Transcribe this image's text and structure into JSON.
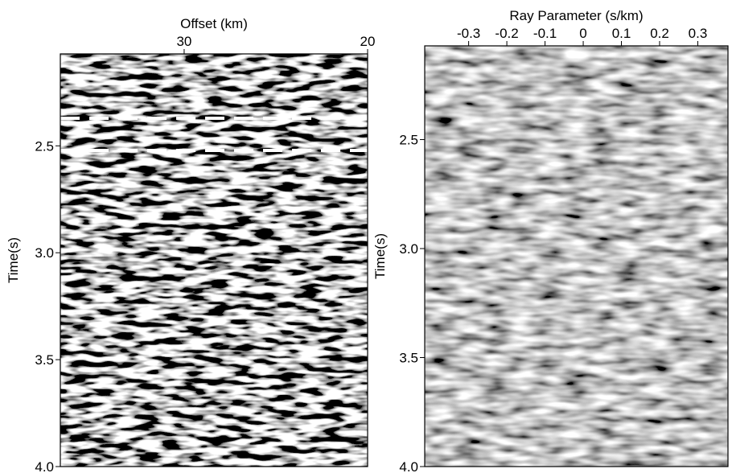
{
  "chart_data": [
    {
      "type": "image",
      "x_label": "Offset (km)",
      "y_label": "Time(s)",
      "xlim": [
        36.75,
        20
      ],
      "xticks": [
        30,
        20
      ],
      "ylim": [
        2.07,
        4.0
      ],
      "yticks": [
        2.5,
        {
          "value": 3.0,
          "label": "3.0"
        },
        3.5,
        {
          "value": 4.0,
          "label": "4.0"
        }
      ]
    },
    {
      "type": "image",
      "x_label": "Ray Parameter (s/km)",
      "y_label": "Time(s)",
      "xlim": [
        -0.415,
        0.379
      ],
      "xticks": [
        -0.3,
        -0.2,
        -0.1,
        0,
        0.1,
        0.2,
        0.3
      ],
      "ylim": [
        2.07,
        4.0
      ],
      "yticks": [
        2.5,
        {
          "value": 3.0,
          "label": "3.0"
        },
        3.5,
        {
          "value": 4.0,
          "label": "4.0"
        }
      ]
    }
  ]
}
